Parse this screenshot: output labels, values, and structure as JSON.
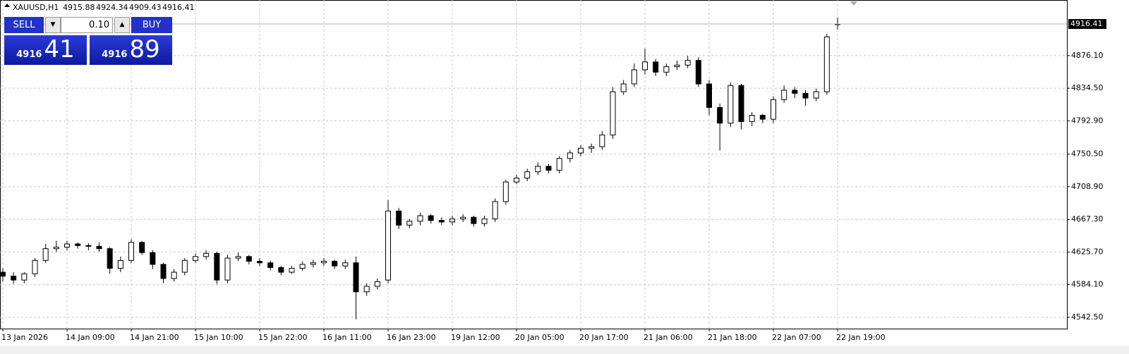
{
  "header": {
    "symbol": "XAUUSD,H1",
    "ohlc": [
      "4915.88",
      "4924.34",
      "4909.43",
      "4916.41"
    ]
  },
  "trade_panel": {
    "sell": "SELL",
    "buy": "BUY",
    "lot": "0.10",
    "sell_price": {
      "big": "4916",
      "pips": "41"
    },
    "buy_price": {
      "big": "4916",
      "pips": "89"
    }
  },
  "chart_data": {
    "type": "candlestick",
    "categories": [
      "13 Jan 2026",
      null,
      null,
      null,
      null,
      null,
      "14 Jan 09:00",
      null,
      null,
      null,
      null,
      null,
      "14 Jan 21:00",
      null,
      null,
      null,
      null,
      null,
      "15 Jan 10:00",
      null,
      null,
      null,
      null,
      null,
      "15 Jan 22:00",
      null,
      null,
      null,
      null,
      null,
      "16 Jan 11:00",
      null,
      null,
      null,
      null,
      null,
      "16 Jan 23:00",
      null,
      null,
      null,
      null,
      null,
      "19 Jan 12:00",
      null,
      null,
      null,
      null,
      null,
      "20 Jan 05:00",
      null,
      null,
      null,
      null,
      null,
      "20 Jan 17:00",
      null,
      null,
      null,
      null,
      null,
      "21 Jan 06:00",
      null,
      null,
      null,
      null,
      null,
      "21 Jan 18:00",
      null,
      null,
      null,
      null,
      null,
      "22 Jan 07:00",
      null,
      null,
      null,
      null,
      null,
      "22 Jan 19:00"
    ],
    "open": [
      4600,
      4595,
      4590,
      4598,
      4615,
      4630,
      4632,
      4636,
      4634,
      4633,
      4630,
      4605,
      4615,
      4638,
      4625,
      4610,
      4592,
      4600,
      4615,
      4620,
      4624,
      4590,
      4618,
      4620,
      4614,
      4612,
      4606,
      4600,
      4605,
      4610,
      4612,
      4614,
      4608,
      4612,
      4575,
      4582,
      4590,
      4678,
      4660,
      4665,
      4672,
      4666,
      4664,
      4668,
      4670,
      4662,
      4668,
      4690,
      4715,
      4720,
      4728,
      4735,
      4730,
      4745,
      4752,
      4758,
      4760,
      4775,
      4830,
      4840,
      4858,
      4868,
      4855,
      4862,
      4864,
      4870,
      4840,
      4810,
      4790,
      4838,
      4792,
      4800,
      4795,
      4820,
      4832,
      4828,
      4822,
      4830,
      4915.88
    ],
    "high": [
      4605,
      4600,
      4600,
      4618,
      4636,
      4640,
      4640,
      4638,
      4637,
      4638,
      4632,
      4620,
      4642,
      4640,
      4628,
      4612,
      4604,
      4618,
      4624,
      4628,
      4626,
      4622,
      4625,
      4622,
      4618,
      4615,
      4608,
      4608,
      4614,
      4616,
      4618,
      4616,
      4616,
      4620,
      4586,
      4592,
      4692,
      4682,
      4668,
      4676,
      4674,
      4670,
      4672,
      4674,
      4672,
      4672,
      4694,
      4718,
      4724,
      4732,
      4740,
      4738,
      4748,
      4756,
      4762,
      4764,
      4780,
      4836,
      4845,
      4866,
      4885,
      4872,
      4866,
      4870,
      4876,
      4874,
      4845,
      4815,
      4842,
      4840,
      4804,
      4802,
      4824,
      4838,
      4836,
      4832,
      4834,
      4904,
      4924.34
    ],
    "low": [
      4588,
      4585,
      4586,
      4594,
      4612,
      4626,
      4628,
      4630,
      4628,
      4626,
      4598,
      4600,
      4612,
      4622,
      4604,
      4586,
      4588,
      4596,
      4612,
      4616,
      4585,
      4586,
      4614,
      4610,
      4608,
      4602,
      4596,
      4598,
      4602,
      4606,
      4608,
      4604,
      4604,
      4540,
      4570,
      4578,
      4586,
      4655,
      4656,
      4660,
      4662,
      4660,
      4660,
      4664,
      4658,
      4658,
      4664,
      4686,
      4712,
      4716,
      4724,
      4726,
      4726,
      4740,
      4748,
      4752,
      4756,
      4770,
      4826,
      4836,
      4852,
      4850,
      4850,
      4858,
      4860,
      4836,
      4800,
      4755,
      4785,
      4782,
      4786,
      4790,
      4790,
      4816,
      4822,
      4812,
      4818,
      4826,
      4909.43
    ],
    "close": [
      4595,
      4590,
      4598,
      4615,
      4630,
      4632,
      4636,
      4634,
      4633,
      4630,
      4605,
      4615,
      4638,
      4625,
      4610,
      4592,
      4600,
      4615,
      4620,
      4624,
      4590,
      4618,
      4620,
      4614,
      4612,
      4606,
      4600,
      4605,
      4610,
      4612,
      4614,
      4608,
      4612,
      4575,
      4582,
      4588,
      4678,
      4660,
      4665,
      4672,
      4666,
      4664,
      4668,
      4670,
      4662,
      4668,
      4690,
      4715,
      4720,
      4728,
      4735,
      4730,
      4745,
      4752,
      4758,
      4760,
      4775,
      4830,
      4840,
      4858,
      4868,
      4855,
      4862,
      4864,
      4870,
      4840,
      4810,
      4790,
      4838,
      4792,
      4800,
      4795,
      4820,
      4832,
      4828,
      4822,
      4830,
      4900,
      4916.41
    ],
    "ylim": [
      4528.12,
      4946.97
    ],
    "yticks": [
      {
        "value": 4542.5,
        "label": "4542.50"
      },
      {
        "value": 4584.1,
        "label": "4584.10"
      },
      {
        "value": 4625.7,
        "label": "4625.70"
      },
      {
        "value": 4667.3,
        "label": "4667.30"
      },
      {
        "value": 4708.9,
        "label": "4708.90"
      },
      {
        "value": 4750.5,
        "label": "4750.50"
      },
      {
        "value": 4792.9,
        "label": "4792.90"
      },
      {
        "value": 4834.5,
        "label": "4834.50"
      },
      {
        "value": 4876.1,
        "label": "4876.10"
      }
    ],
    "grid": true
  }
}
